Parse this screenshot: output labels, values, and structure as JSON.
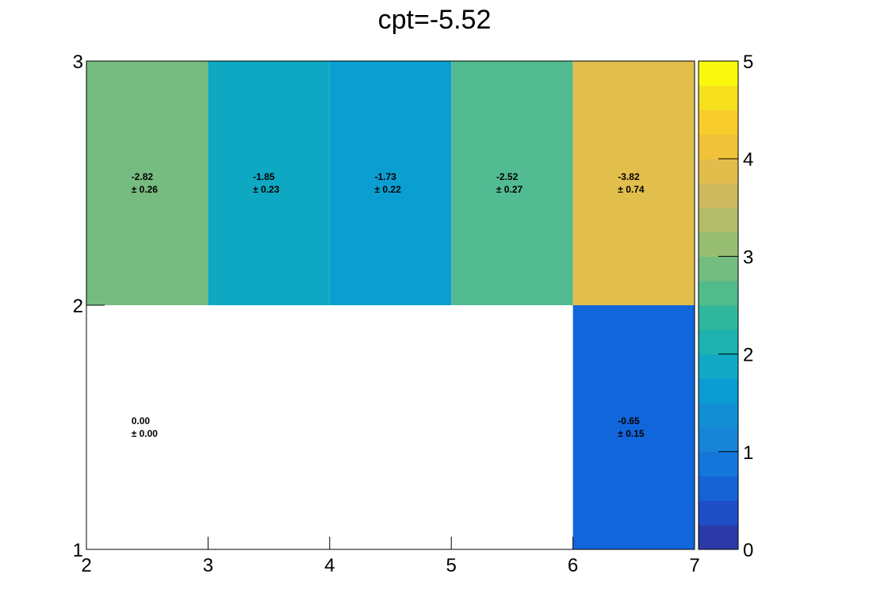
{
  "chart_data": {
    "type": "heatmap",
    "title": "cpt=-5.52",
    "xlabel": "",
    "ylabel": "",
    "xlim": [
      2,
      7
    ],
    "ylim": [
      1,
      3
    ],
    "x_ticks": [
      "2",
      "3",
      "4",
      "5",
      "6",
      "7"
    ],
    "y_ticks": [
      "1",
      "2",
      "3"
    ],
    "colorbar": {
      "range": [
        0,
        5
      ],
      "ticks": [
        "0",
        "1",
        "2",
        "3",
        "4",
        "5"
      ],
      "colors": [
        "#2b3aa8",
        "#1f4ec7",
        "#1663d6",
        "#1476da",
        "#1784d8",
        "#128fd4",
        "#0b9cd2",
        "#12a9c6",
        "#1db2b0",
        "#2fb79b",
        "#52bb8c",
        "#74bc7f",
        "#97be72",
        "#b3bc68",
        "#cfb95f",
        "#e2bd4c",
        "#f0c23a",
        "#f9cc2d",
        "#f6df1c",
        "#f9f90e"
      ]
    },
    "cells": [
      {
        "x": [
          2,
          3
        ],
        "y": [
          2,
          3
        ],
        "value": -2.82,
        "error": 0.26,
        "color": "#76bb80",
        "label": "-2.82",
        "error_label": "± 0.26"
      },
      {
        "x": [
          3,
          4
        ],
        "y": [
          2,
          3
        ],
        "value": -1.85,
        "error": 0.23,
        "color": "#0fa8c2",
        "label": "-1.85",
        "error_label": "± 0.23"
      },
      {
        "x": [
          4,
          5
        ],
        "y": [
          2,
          3
        ],
        "value": -1.73,
        "error": 0.22,
        "color": "#0b9ed0",
        "label": "-1.73",
        "error_label": "± 0.22"
      },
      {
        "x": [
          5,
          6
        ],
        "y": [
          2,
          3
        ],
        "value": -2.52,
        "error": 0.27,
        "color": "#52bb92",
        "label": "-2.52",
        "error_label": "± 0.27"
      },
      {
        "x": [
          6,
          7
        ],
        "y": [
          2,
          3
        ],
        "value": -3.82,
        "error": 0.74,
        "color": "#e2bf4c",
        "label": "-3.82",
        "error_label": "± 0.74"
      },
      {
        "x": [
          2,
          3
        ],
        "y": [
          1,
          2
        ],
        "value": 0.0,
        "error": 0.0,
        "color": "#ffffff",
        "label": "0.00",
        "error_label": "± 0.00"
      },
      {
        "x": [
          6,
          7
        ],
        "y": [
          1,
          2
        ],
        "value": -0.65,
        "error": 0.15,
        "color": "#1266dc",
        "label": "-0.65",
        "error_label": "± 0.15"
      }
    ]
  }
}
